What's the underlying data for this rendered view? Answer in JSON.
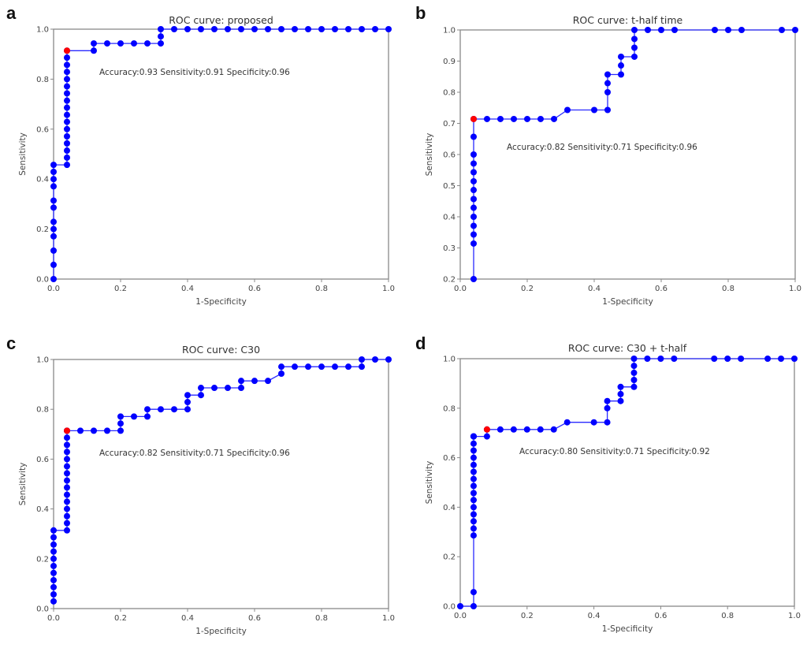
{
  "chart_data": [
    {
      "panel": "a",
      "type": "line",
      "title": "ROC curve: proposed",
      "xlabel": "1-Specificity",
      "ylabel": "Sensitivity",
      "xlim": [
        0.0,
        1.0
      ],
      "ylim": [
        0.0,
        1.0
      ],
      "xticks": [
        "0.0",
        "0.2",
        "0.4",
        "0.6",
        "0.8",
        "1.0"
      ],
      "yticks": [
        "0.0",
        "0.2",
        "0.4",
        "0.6",
        "0.8",
        "1.0"
      ],
      "grid": false,
      "annotation": "Accuracy:0.93 Sensitivity:0.91 Specificity:0.96",
      "line_color": "#0000ff",
      "optimal_point_color": "#ff0000",
      "optimal_point": [
        0.04,
        0.914
      ],
      "series": [
        {
          "name": "ROC",
          "x": [
            0,
            0,
            0,
            0,
            0,
            0,
            0,
            0,
            0,
            0,
            0,
            0,
            0.04,
            0.04,
            0.04,
            0.04,
            0.04,
            0.04,
            0.04,
            0.04,
            0.04,
            0.04,
            0.04,
            0.04,
            0.04,
            0.04,
            0.04,
            0.04,
            0.04,
            0.12,
            0.12,
            0.16,
            0.2,
            0.24,
            0.28,
            0.32,
            0.32,
            0.32,
            0.36,
            0.4,
            0.44,
            0.48,
            0.52,
            0.56,
            0.6,
            0.64,
            0.68,
            0.72,
            0.76,
            0.8,
            0.84,
            0.88,
            0.92,
            0.96,
            1.0
          ],
          "y": [
            0,
            0.057,
            0.114,
            0.171,
            0.2,
            0.229,
            0.286,
            0.314,
            0.371,
            0.4,
            0.429,
            0.457,
            0.457,
            0.486,
            0.514,
            0.543,
            0.571,
            0.6,
            0.629,
            0.657,
            0.686,
            0.714,
            0.743,
            0.771,
            0.8,
            0.829,
            0.857,
            0.886,
            0.914,
            0.914,
            0.943,
            0.943,
            0.943,
            0.943,
            0.943,
            0.943,
            0.971,
            1.0,
            1.0,
            1.0,
            1.0,
            1.0,
            1.0,
            1.0,
            1.0,
            1.0,
            1.0,
            1.0,
            1.0,
            1.0,
            1.0,
            1.0,
            1.0,
            1.0,
            1.0
          ]
        }
      ]
    },
    {
      "panel": "b",
      "type": "line",
      "title": "ROC curve: t-half time",
      "xlabel": "1-Specificity",
      "ylabel": "Sensitivity",
      "xlim": [
        0.0,
        1.0
      ],
      "ylim": [
        0.2,
        1.0
      ],
      "xticks": [
        "0.0",
        "0.2",
        "0.4",
        "0.6",
        "0.8",
        "1.0"
      ],
      "yticks": [
        "0.2",
        "0.3",
        "0.4",
        "0.5",
        "0.6",
        "0.7",
        "0.8",
        "0.9",
        "1.0"
      ],
      "grid": false,
      "annotation": "Accuracy:0.82 Sensitivity:0.71 Specificity:0.96",
      "line_color": "#0000ff",
      "optimal_point_color": "#ff0000",
      "optimal_point": [
        0.04,
        0.714
      ],
      "series": [
        {
          "name": "ROC",
          "x": [
            0.04,
            0.04,
            0.04,
            0.04,
            0.04,
            0.04,
            0.04,
            0.04,
            0.04,
            0.04,
            0.04,
            0.04,
            0.04,
            0.04,
            0.08,
            0.12,
            0.16,
            0.2,
            0.24,
            0.28,
            0.32,
            0.4,
            0.44,
            0.44,
            0.44,
            0.44,
            0.48,
            0.48,
            0.48,
            0.52,
            0.52,
            0.52,
            0.52,
            0.56,
            0.6,
            0.64,
            0.76,
            0.8,
            0.84,
            0.96,
            1.0
          ],
          "y": [
            0.2,
            0.314,
            0.343,
            0.371,
            0.4,
            0.429,
            0.457,
            0.486,
            0.514,
            0.543,
            0.571,
            0.6,
            0.657,
            0.714,
            0.714,
            0.714,
            0.714,
            0.714,
            0.714,
            0.714,
            0.743,
            0.743,
            0.743,
            0.8,
            0.829,
            0.857,
            0.857,
            0.886,
            0.914,
            0.914,
            0.943,
            0.971,
            1.0,
            1.0,
            1.0,
            1.0,
            1.0,
            1.0,
            1.0,
            1.0,
            1.0
          ]
        }
      ]
    },
    {
      "panel": "c",
      "type": "line",
      "title": "ROC curve: C30",
      "xlabel": "1-Specificity",
      "ylabel": "Sensitivity",
      "xlim": [
        0.0,
        1.0
      ],
      "ylim": [
        0.0,
        1.0
      ],
      "xticks": [
        "0.0",
        "0.2",
        "0.4",
        "0.6",
        "0.8",
        "1.0"
      ],
      "yticks": [
        "0.0",
        "0.2",
        "0.4",
        "0.6",
        "0.8",
        "1.0"
      ],
      "grid": false,
      "annotation": "Accuracy:0.82 Sensitivity:0.71 Specificity:0.96",
      "line_color": "#0000ff",
      "optimal_point_color": "#ff0000",
      "optimal_point": [
        0.04,
        0.714
      ],
      "series": [
        {
          "name": "ROC",
          "x": [
            0,
            0,
            0,
            0,
            0,
            0,
            0,
            0,
            0,
            0,
            0,
            0.04,
            0.04,
            0.04,
            0.04,
            0.04,
            0.04,
            0.04,
            0.04,
            0.04,
            0.04,
            0.04,
            0.04,
            0.04,
            0.04,
            0.04,
            0.04,
            0.08,
            0.12,
            0.16,
            0.2,
            0.2,
            0.2,
            0.24,
            0.28,
            0.28,
            0.32,
            0.36,
            0.4,
            0.4,
            0.4,
            0.44,
            0.44,
            0.48,
            0.52,
            0.56,
            0.56,
            0.6,
            0.64,
            0.68,
            0.68,
            0.72,
            0.76,
            0.8,
            0.84,
            0.88,
            0.92,
            0.92,
            0.96,
            1.0
          ],
          "y": [
            0.029,
            0.057,
            0.086,
            0.114,
            0.143,
            0.171,
            0.2,
            0.229,
            0.257,
            0.286,
            0.314,
            0.314,
            0.343,
            0.371,
            0.4,
            0.429,
            0.457,
            0.486,
            0.514,
            0.543,
            0.571,
            0.6,
            0.629,
            0.657,
            0.686,
            0.714,
            0.714,
            0.714,
            0.714,
            0.714,
            0.714,
            0.743,
            0.771,
            0.771,
            0.771,
            0.8,
            0.8,
            0.8,
            0.8,
            0.829,
            0.857,
            0.857,
            0.886,
            0.886,
            0.886,
            0.886,
            0.914,
            0.914,
            0.914,
            0.943,
            0.971,
            0.971,
            0.971,
            0.971,
            0.971,
            0.971,
            0.971,
            1.0,
            1.0,
            1.0
          ]
        }
      ]
    },
    {
      "panel": "d",
      "type": "line",
      "title": "ROC curve: C30 + t-half",
      "xlabel": "1-Specificity",
      "ylabel": "Sensitivity",
      "xlim": [
        0.0,
        1.0
      ],
      "ylim": [
        0.0,
        1.0
      ],
      "xticks": [
        "0.0",
        "0.2",
        "0.4",
        "0.6",
        "0.8",
        "1.0"
      ],
      "yticks": [
        "0.0",
        "0.2",
        "0.4",
        "0.6",
        "0.8",
        "1.0"
      ],
      "grid": false,
      "annotation": "Accuracy:0.80 Sensitivity:0.71 Specificity:0.92",
      "line_color": "#0000ff",
      "optimal_point_color": "#ff0000",
      "optimal_point": [
        0.08,
        0.714
      ],
      "series": [
        {
          "name": "ROC",
          "x": [
            0,
            0.04,
            0.04,
            0.04,
            0.04,
            0.04,
            0.04,
            0.04,
            0.04,
            0.04,
            0.04,
            0.04,
            0.04,
            0.04,
            0.04,
            0.04,
            0.04,
            0.04,
            0.04,
            0.04,
            0.04,
            0.08,
            0.08,
            0.12,
            0.16,
            0.2,
            0.24,
            0.28,
            0.32,
            0.4,
            0.44,
            0.44,
            0.44,
            0.48,
            0.48,
            0.48,
            0.52,
            0.52,
            0.52,
            0.52,
            0.52,
            0.56,
            0.6,
            0.64,
            0.76,
            0.8,
            0.84,
            0.92,
            0.96,
            1.0
          ],
          "y": [
            0,
            0,
            0.057,
            0.286,
            0.314,
            0.343,
            0.371,
            0.4,
            0.429,
            0.457,
            0.486,
            0.514,
            0.543,
            0.571,
            0.6,
            0.629,
            0.657,
            0.686,
            0.686,
            0.686,
            0.686,
            0.686,
            0.714,
            0.714,
            0.714,
            0.714,
            0.714,
            0.714,
            0.743,
            0.743,
            0.743,
            0.8,
            0.829,
            0.829,
            0.857,
            0.886,
            0.886,
            0.914,
            0.943,
            0.971,
            1.0,
            1.0,
            1.0,
            1.0,
            1.0,
            1.0,
            1.0,
            1.0,
            1.0,
            1.0
          ]
        }
      ]
    }
  ]
}
